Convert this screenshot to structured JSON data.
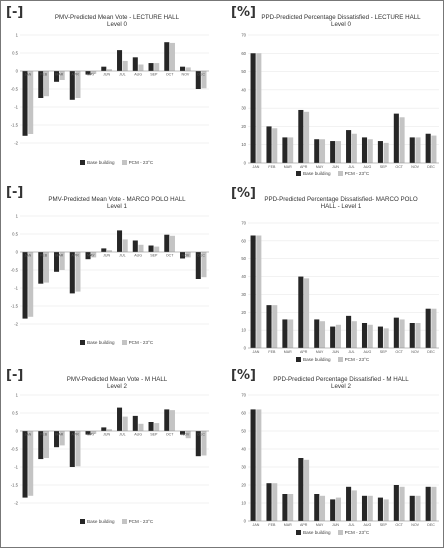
{
  "colors": {
    "base": "#262626",
    "pcm": "#c4c4c4",
    "grid": "#dddddd",
    "axis": "#888888"
  },
  "chart_data": [
    {
      "id": "pmv-l0",
      "type": "bar",
      "unit_label": "[-]",
      "title": "PMV-Predicted Mean Vote - LECTURE HALL",
      "subtitle": "Level 0",
      "categories": [
        "JAN",
        "FEB",
        "MAR",
        "APR",
        "MAY",
        "JUN",
        "JUL",
        "AUG",
        "SEP",
        "OCT",
        "NOV",
        "DEC"
      ],
      "series": [
        {
          "name": "Base building",
          "values": [
            -1.8,
            -0.75,
            -0.3,
            -0.8,
            -0.1,
            0.12,
            0.58,
            0.38,
            0.22,
            0.8,
            0.12,
            -0.5
          ]
        },
        {
          "name": "PCM - 23°C",
          "values": [
            -1.75,
            -0.7,
            -0.25,
            -0.75,
            -0.08,
            0.05,
            0.28,
            0.18,
            0.22,
            0.78,
            0.1,
            -0.48
          ]
        }
      ],
      "ylim": [
        -2,
        1
      ],
      "yticks": [
        1,
        0.5,
        0,
        -0.5,
        -1,
        -1.5,
        -2
      ],
      "ytick_labels": [
        "1",
        "0.5",
        "0",
        "-0.5",
        "-1",
        "-1.5",
        "-2"
      ],
      "grid": true,
      "legend": "bottom"
    },
    {
      "id": "ppd-l0",
      "type": "bar",
      "unit_label": "[%]",
      "title": "PPD-Predicted Percentage Dissatisfied - LECTURE HALL",
      "subtitle": "Level 0",
      "categories": [
        "JAN",
        "FEB",
        "MAR",
        "APR",
        "MAY",
        "JUN",
        "JUL",
        "AUG",
        "SEP",
        "OCT",
        "NOV",
        "DEC"
      ],
      "series": [
        {
          "name": "Base building",
          "values": [
            60,
            20,
            14,
            29,
            13,
            12,
            18,
            14,
            12,
            27,
            14,
            16
          ]
        },
        {
          "name": "PCM - 23°C",
          "values": [
            60,
            19,
            14,
            28,
            13,
            12,
            16,
            13,
            11,
            25,
            14,
            15
          ]
        }
      ],
      "ylim": [
        0,
        70
      ],
      "yticks": [
        70,
        60,
        50,
        40,
        30,
        20,
        10,
        0
      ],
      "ytick_labels": [
        "70",
        "60",
        "50",
        "40",
        "30",
        "20",
        "10",
        "0"
      ],
      "grid": true,
      "legend": "bottom"
    },
    {
      "id": "pmv-l1",
      "type": "bar",
      "unit_label": "[-]",
      "title": "PMV-Predicted Mean Vote - MARCO POLO HALL",
      "subtitle": "Level 1",
      "categories": [
        "JAN",
        "FEB",
        "MAR",
        "APR",
        "MAY",
        "JUN",
        "JUL",
        "AUG",
        "SEP",
        "OCT",
        "NOV",
        "DEC"
      ],
      "series": [
        {
          "name": "Base building",
          "values": [
            -1.85,
            -0.88,
            -0.55,
            -1.15,
            -0.2,
            0.1,
            0.6,
            0.32,
            0.18,
            0.48,
            -0.18,
            -0.75
          ]
        },
        {
          "name": "PCM - 23°C",
          "values": [
            -1.8,
            -0.85,
            -0.5,
            -1.1,
            -0.15,
            0.05,
            0.35,
            0.2,
            0.15,
            0.45,
            -0.15,
            -0.7
          ]
        }
      ],
      "ylim": [
        -2,
        1
      ],
      "yticks": [
        1,
        0.5,
        0,
        -0.5,
        -1,
        -1.5,
        -2
      ],
      "ytick_labels": [
        "1",
        "0.5",
        "0",
        "-0.5",
        "-1",
        "-1.5",
        "-2"
      ],
      "grid": true,
      "legend": "bottom"
    },
    {
      "id": "ppd-l1",
      "type": "bar",
      "unit_label": "[%]",
      "title": "PPD-Predicted Percentage Dissatisfied- MARCO POLO",
      "subtitle": "HALL - Level 1",
      "categories": [
        "JAN",
        "FEB",
        "MAR",
        "APR",
        "MAY",
        "JUN",
        "JUL",
        "AUG",
        "SEP",
        "OCT",
        "NOV",
        "DEC"
      ],
      "series": [
        {
          "name": "Base building",
          "values": [
            63,
            24,
            16,
            40,
            16,
            12,
            18,
            14,
            12,
            17,
            14,
            22
          ]
        },
        {
          "name": "PCM - 23°C",
          "values": [
            63,
            24,
            16,
            39,
            15,
            13,
            15,
            13,
            11,
            16,
            14,
            22
          ]
        }
      ],
      "ylim": [
        0,
        70
      ],
      "yticks": [
        70,
        60,
        50,
        40,
        30,
        20,
        10,
        0
      ],
      "ytick_labels": [
        "70",
        "60",
        "50",
        "40",
        "30",
        "20",
        "10",
        "0"
      ],
      "grid": true,
      "legend": "bottom"
    },
    {
      "id": "pmv-l2",
      "type": "bar",
      "unit_label": "[-]",
      "title": "PMV-Predicted Mean Vote - M HALL",
      "subtitle": "Level 2",
      "categories": [
        "JAN",
        "FEB",
        "MAR",
        "APR",
        "MAY",
        "JUN",
        "JUL",
        "AUG",
        "SEP",
        "OCT",
        "NOV",
        "DEC"
      ],
      "series": [
        {
          "name": "Base building",
          "values": [
            -1.85,
            -0.78,
            -0.45,
            -1.0,
            -0.1,
            0.1,
            0.65,
            0.42,
            0.25,
            0.6,
            -0.1,
            -0.7
          ]
        },
        {
          "name": "PCM - 23°C",
          "values": [
            -1.8,
            -0.75,
            -0.4,
            -0.98,
            -0.08,
            0.05,
            0.4,
            0.2,
            0.22,
            0.58,
            -0.2,
            -0.68
          ]
        }
      ],
      "ylim": [
        -2,
        1
      ],
      "yticks": [
        1,
        0.5,
        0,
        -0.5,
        -1,
        -1.5,
        -2
      ],
      "ytick_labels": [
        "1",
        "0.5",
        "0",
        "-0.5",
        "-1",
        "-1.5",
        "-2"
      ],
      "grid": true,
      "legend": "bottom"
    },
    {
      "id": "ppd-l2",
      "type": "bar",
      "unit_label": "[%]",
      "title": "PPD-Predicted Percentage Dissatisfied - M HALL",
      "subtitle": "Level 2",
      "categories": [
        "JAN",
        "FEB",
        "MAR",
        "APR",
        "MAY",
        "JUN",
        "JUL",
        "AUG",
        "SEP",
        "OCT",
        "NOV",
        "DEC"
      ],
      "series": [
        {
          "name": "Base building",
          "values": [
            62,
            21,
            15,
            35,
            15,
            12,
            19,
            14,
            13,
            20,
            14,
            19
          ]
        },
        {
          "name": "PCM - 23°C",
          "values": [
            62,
            21,
            15,
            34,
            14,
            13,
            17,
            14,
            12,
            19,
            14,
            19
          ]
        }
      ],
      "ylim": [
        0,
        70
      ],
      "yticks": [
        70,
        60,
        50,
        40,
        30,
        20,
        10,
        0
      ],
      "ytick_labels": [
        "70",
        "60",
        "50",
        "40",
        "30",
        "20",
        "10",
        "0"
      ],
      "grid": true,
      "legend": "bottom"
    }
  ]
}
